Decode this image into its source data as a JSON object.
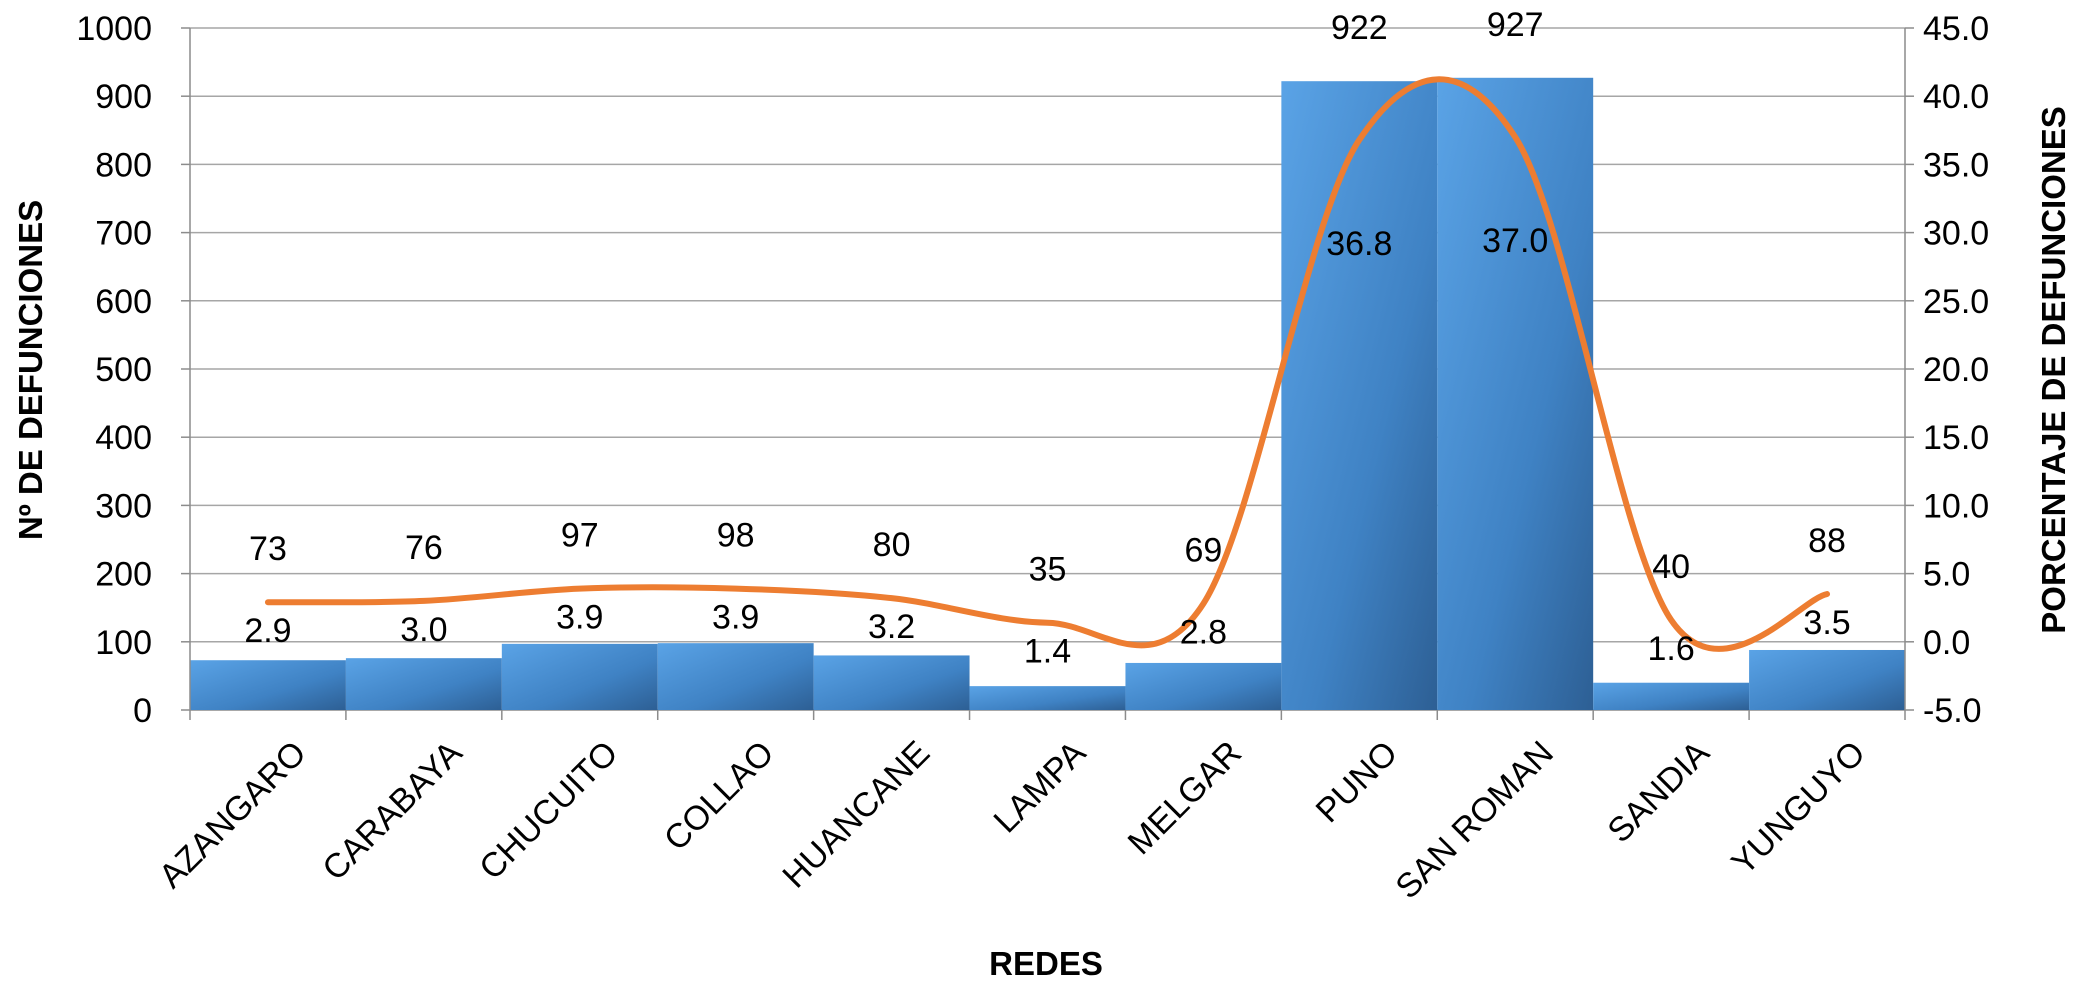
{
  "chart_data": {
    "type": "bar",
    "categories": [
      "AZANGARO",
      "CARABAYA",
      "CHUCUITO",
      "COLLAO",
      "HUANCANE",
      "LAMPA",
      "MELGAR",
      "PUNO",
      "SAN ROMAN",
      "SANDIA",
      "YUNGUYO"
    ],
    "series": [
      {
        "type": "bar",
        "axis": "left",
        "values": [
          73,
          76,
          97,
          98,
          80,
          35,
          69,
          922,
          927,
          40,
          88
        ],
        "labels": [
          "73",
          "76",
          "97",
          "98",
          "80",
          "35",
          "69",
          "922",
          "927",
          "40",
          "88"
        ],
        "color": "#4a8fd0"
      },
      {
        "type": "line",
        "axis": "right",
        "values": [
          2.9,
          3.0,
          3.9,
          3.9,
          3.2,
          1.4,
          2.8,
          36.8,
          37.0,
          1.6,
          3.5
        ],
        "labels": [
          "2.9",
          "3.0",
          "3.9",
          "3.9",
          "3.2",
          "1.4",
          "2.8",
          "36.8",
          "37.0",
          "1.6",
          "3.5"
        ],
        "color": "#ed7d31",
        "smooth": true
      }
    ],
    "xlabel": "REDES",
    "ylabel": "Nº DE DEFUNCIONES",
    "y2label": "PORCENTAJE DE DEFUNCIONES",
    "ylim": [
      0,
      1000
    ],
    "yticks": [
      "0",
      "100",
      "200",
      "300",
      "400",
      "500",
      "600",
      "700",
      "800",
      "900",
      "1000"
    ],
    "y2lim": [
      -5.0,
      45.0
    ],
    "y2ticks": [
      "-5.0",
      "0.0",
      "5.0",
      "10.0",
      "15.0",
      "20.0",
      "25.0",
      "30.0",
      "35.0",
      "40.0",
      "45.0"
    ],
    "grid": true,
    "legend": "none"
  }
}
